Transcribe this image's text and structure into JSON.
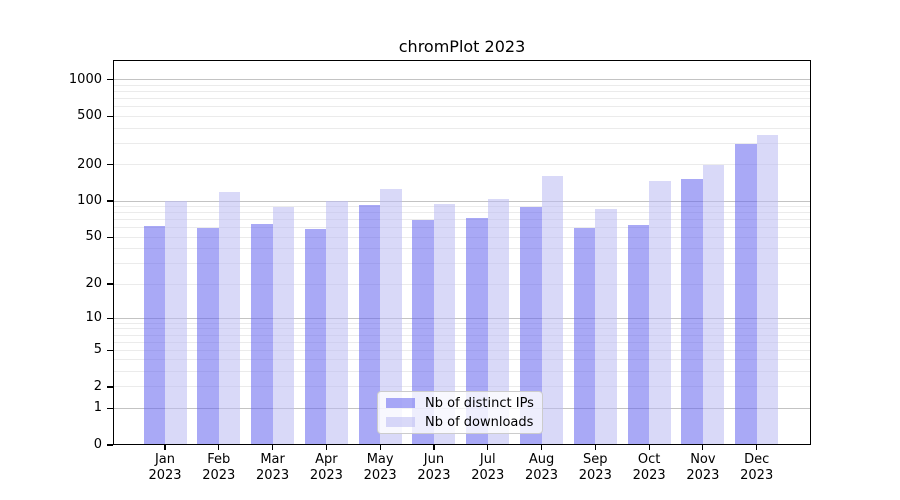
{
  "title": "chromPlot 2023",
  "legend": {
    "items": [
      {
        "label": "Nb of distinct IPs",
        "color": "rgba(98,98,238,0.55)"
      },
      {
        "label": "Nb of downloads",
        "color": "rgba(186,186,242,0.55)"
      }
    ]
  },
  "chart_data": {
    "type": "bar",
    "title": "chromPlot 2023",
    "categories": [
      "Jan 2023",
      "Feb 2023",
      "Mar 2023",
      "Apr 2023",
      "May 2023",
      "Jun 2023",
      "Jul 2023",
      "Aug 2023",
      "Sep 2023",
      "Oct 2023",
      "Nov 2023",
      "Dec 2023"
    ],
    "x_tick_labels": [
      [
        "Jan",
        "2023"
      ],
      [
        "Feb",
        "2023"
      ],
      [
        "Mar",
        "2023"
      ],
      [
        "Apr",
        "2023"
      ],
      [
        "May",
        "2023"
      ],
      [
        "Jun",
        "2023"
      ],
      [
        "Jul",
        "2023"
      ],
      [
        "Aug",
        "2023"
      ],
      [
        "Sep",
        "2023"
      ],
      [
        "Oct",
        "2023"
      ],
      [
        "Nov",
        "2023"
      ],
      [
        "Dec",
        "2023"
      ]
    ],
    "series": [
      {
        "name": "Nb of distinct IPs",
        "color": "rgba(98,98,238,0.55)",
        "apparent_color": "#aaaaf6",
        "values": [
          62,
          60,
          65,
          59,
          92,
          69,
          72,
          89,
          60,
          63,
          153,
          295
        ]
      },
      {
        "name": "Nb of downloads",
        "color": "rgba(186,186,242,0.55)",
        "apparent_color": "#d9daf8",
        "values": [
          100,
          120,
          90,
          100,
          125,
          95,
          105,
          160,
          86,
          148,
          200,
          350
        ]
      }
    ],
    "yscale": "log1p",
    "y_ticks": [
      0,
      1,
      2,
      5,
      10,
      20,
      50,
      100,
      200,
      500,
      1000
    ],
    "ylim": [
      0,
      1456
    ],
    "grid": true,
    "legend_position": "lower center"
  }
}
